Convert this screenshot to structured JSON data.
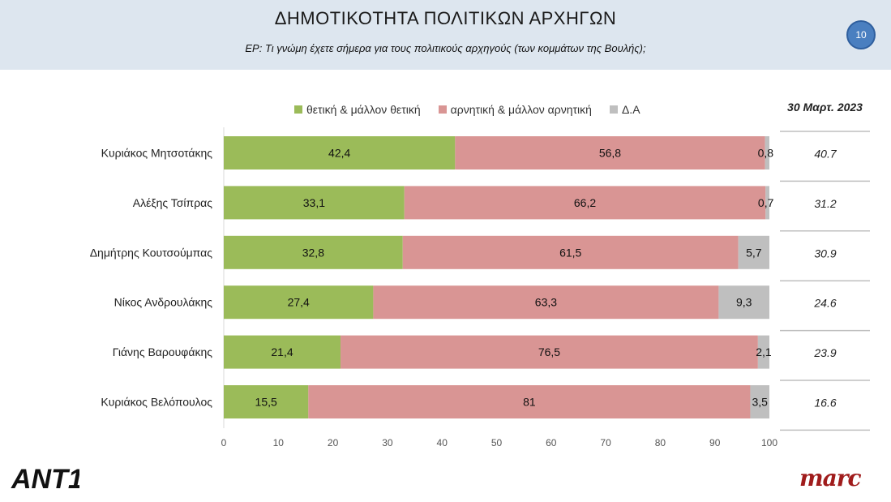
{
  "header": {
    "title": "ΔΗΜΟΤΙΚΟΤΗΤΑ ΠΟΛΙΤΙΚΩΝ ΑΡΧΗΓΩΝ",
    "subtitle": "ΕΡ: Τι γνώμη έχετε σήμερα για τους πολιτικούς αρχηγούς (των κομμάτων της Βουλής);",
    "page_number": "10"
  },
  "comparison_column": {
    "header": "30 Μαρτ. 2023",
    "values": [
      "40.7",
      "31.2",
      "30.9",
      "24.6",
      "23.9",
      "16.6"
    ]
  },
  "logos": {
    "left": "ANT1",
    "right": "marc"
  },
  "colors": {
    "positive": "#9bbb59",
    "negative": "#d99594",
    "dk": "#bfbfbf",
    "header_bg": "#dde6ef"
  },
  "chart_data": {
    "type": "bar",
    "orientation": "horizontal",
    "stacked": true,
    "categories": [
      "Κυριάκος Μητσοτάκης",
      "Αλέξης Τσίπρας",
      "Δημήτρης Κουτσούμπας",
      "Νίκος Ανδρουλάκης",
      "Γιάνης Βαρουφάκης",
      "Κυριάκος Βελόπουλος"
    ],
    "series": [
      {
        "name": "θετική & μάλλον θετική",
        "values": [
          42.4,
          33.1,
          32.8,
          27.4,
          21.4,
          15.5
        ],
        "labels": [
          "42,4",
          "33,1",
          "32,8",
          "27,4",
          "21,4",
          "15,5"
        ]
      },
      {
        "name": "αρνητική & μάλλον αρνητική",
        "values": [
          56.8,
          66.2,
          61.5,
          63.3,
          76.5,
          81
        ],
        "labels": [
          "56,8",
          "66,2",
          "61,5",
          "63,3",
          "76,5",
          "81"
        ]
      },
      {
        "name": "Δ.Α",
        "values": [
          0.8,
          0.7,
          5.7,
          9.3,
          2.1,
          3.5
        ],
        "labels": [
          "0,8",
          "0,7",
          "5,7",
          "9,3",
          "2,1",
          "3,5"
        ]
      }
    ],
    "xlim": [
      0,
      100
    ],
    "xticks": [
      "0",
      "10",
      "20",
      "30",
      "40",
      "50",
      "60",
      "70",
      "80",
      "90",
      "100"
    ],
    "legend_position": "top",
    "title": "",
    "xlabel": "",
    "ylabel": ""
  }
}
